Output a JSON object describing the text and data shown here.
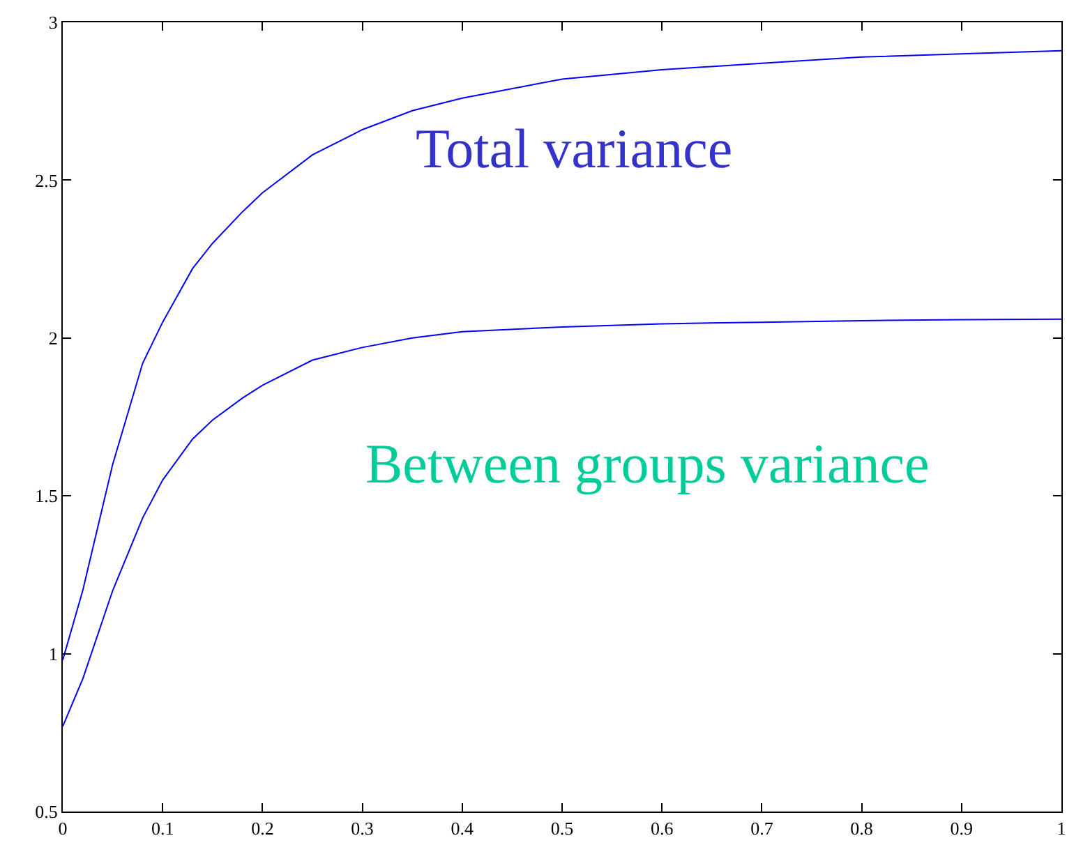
{
  "chart_data": {
    "type": "line",
    "xlim": [
      0,
      1
    ],
    "ylim": [
      0.5,
      3
    ],
    "xticks": [
      0,
      0.1,
      0.2,
      0.3,
      0.4,
      0.5,
      0.6,
      0.7,
      0.8,
      0.9,
      1
    ],
    "yticks": [
      0.5,
      1,
      1.5,
      2,
      2.5,
      3
    ],
    "grid": false,
    "legend": false,
    "marker": "none",
    "line_style": "solid",
    "x": [
      0,
      0.02,
      0.05,
      0.08,
      0.1,
      0.13,
      0.15,
      0.18,
      0.2,
      0.25,
      0.3,
      0.35,
      0.4,
      0.5,
      0.6,
      0.7,
      0.8,
      0.9,
      1
    ],
    "series": [
      {
        "name": "Total variance",
        "color": "#0000ff",
        "values": [
          0.98,
          1.2,
          1.6,
          1.92,
          2.05,
          2.22,
          2.3,
          2.4,
          2.46,
          2.58,
          2.66,
          2.72,
          2.76,
          2.82,
          2.85,
          2.87,
          2.89,
          2.9,
          2.91
        ]
      },
      {
        "name": "Between groups variance",
        "color": "#0000ff",
        "values": [
          0.77,
          0.92,
          1.2,
          1.43,
          1.55,
          1.68,
          1.74,
          1.81,
          1.85,
          1.93,
          1.97,
          2.0,
          2.02,
          2.035,
          2.045,
          2.05,
          2.055,
          2.058,
          2.06
        ]
      }
    ]
  }
}
